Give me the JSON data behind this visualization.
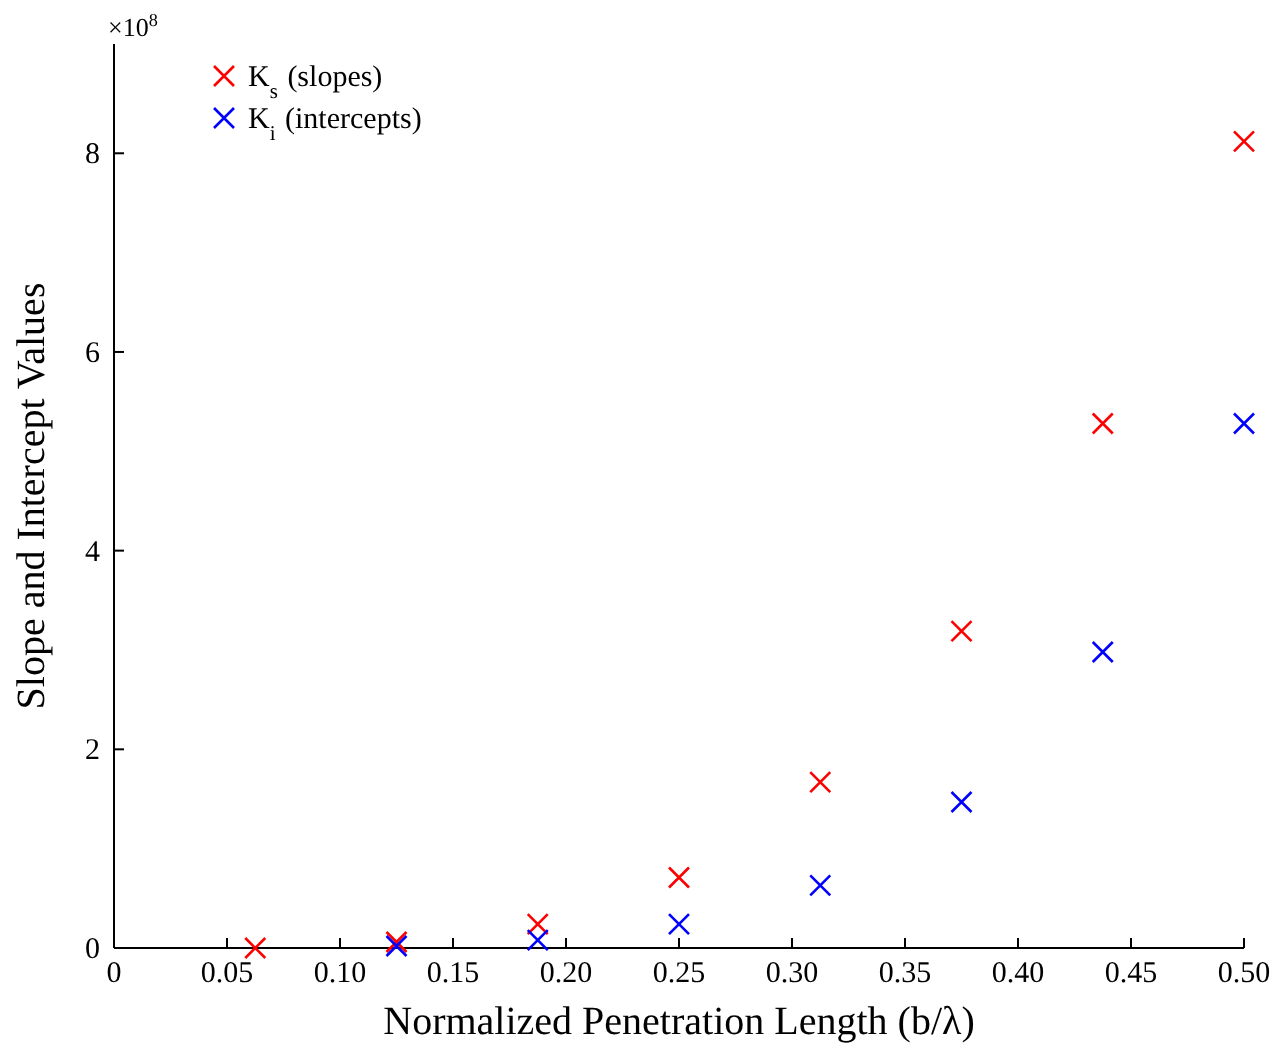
{
  "chart_data": {
    "type": "scatter",
    "xlabel": "Normalized Penetration Length (b/λ)",
    "ylabel": "Slope and Intercept Values",
    "annotations": [
      "×10$^{8}$"
    ],
    "xlim": [
      0,
      0.5
    ],
    "xticks": [
      0,
      0.05,
      {
        "value": 0.1,
        "label": "0.10"
      },
      0.15,
      {
        "value": 0.2,
        "label": "0.20"
      },
      0.25,
      {
        "value": 0.3,
        "label": "0.30"
      },
      0.35,
      {
        "value": 0.4,
        "label": "0.40"
      },
      0.45,
      {
        "value": 0.5,
        "label": "0.50"
      }
    ],
    "ylim": [
      0,
      9.1
    ],
    "yticks": [
      0,
      2,
      4,
      6,
      8
    ],
    "marker": "cross",
    "legend": "top left",
    "series": [
      {
        "name": "K$_{s}$ (slopes)",
        "color": "#ff0000",
        "x": [
          0.0625,
          0.125,
          0.1875,
          0.25,
          0.3125,
          0.375,
          0.4375,
          0.5
        ],
        "values": [
          0,
          0.06,
          0.24,
          0.71,
          1.67,
          3.19,
          5.28,
          8.12
        ]
      },
      {
        "name": "K$_{i}$ (intercepts)",
        "color": "#0000ff",
        "x": [
          0.125,
          0.1875,
          0.25,
          0.3125,
          0.375,
          0.4375,
          0.5
        ],
        "values": [
          0.02,
          0.08,
          0.24,
          0.63,
          1.47,
          2.98,
          5.28
        ]
      }
    ]
  }
}
